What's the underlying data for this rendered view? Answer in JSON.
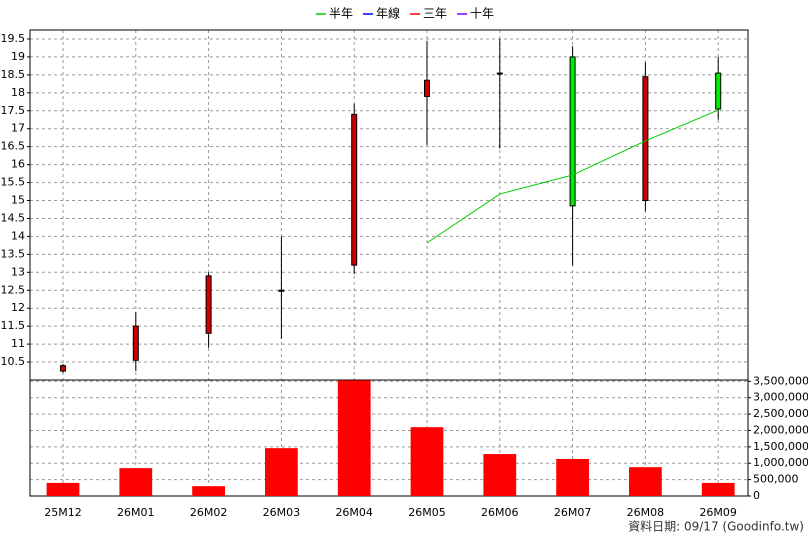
{
  "chart_data": {
    "type": "candlestick",
    "categories": [
      "25M12",
      "26M01",
      "26M02",
      "26M03",
      "26M04",
      "26M05",
      "26M06",
      "26M07",
      "26M08",
      "26M09"
    ],
    "open": [
      10.25,
      10.55,
      11.3,
      12.5,
      13.2,
      17.9,
      18.55,
      19.0,
      15.0,
      18.55
    ],
    "high": [
      10.45,
      11.9,
      13.0,
      14.0,
      17.7,
      19.45,
      19.5,
      19.3,
      18.85,
      19.0
    ],
    "low": [
      10.2,
      10.25,
      10.9,
      11.15,
      12.95,
      16.55,
      16.45,
      13.2,
      14.7,
      17.25
    ],
    "close": [
      10.4,
      11.5,
      12.9,
      12.5,
      17.4,
      18.35,
      18.55,
      14.85,
      18.45,
      17.55
    ],
    "up_color": "#cc0000",
    "down_color": "#00ee00",
    "ylim": [
      10,
      19.75
    ],
    "yticks": [
      10.5,
      11,
      11.5,
      12,
      12.5,
      13,
      13.5,
      14,
      14.5,
      15,
      15.5,
      16,
      16.5,
      17,
      17.5,
      18,
      18.5,
      19,
      19.5
    ],
    "grid": true,
    "series": [
      {
        "name": "半年",
        "color": "#00cc00",
        "values": [
          null,
          null,
          null,
          null,
          null,
          13.82,
          15.18,
          15.71,
          16.66,
          17.52
        ]
      },
      {
        "name": "年線",
        "color": "#0000ff",
        "values": [
          null,
          null,
          null,
          null,
          null,
          null,
          null,
          null,
          null,
          null
        ]
      },
      {
        "name": "三年",
        "color": "#ff0000",
        "values": [
          null,
          null,
          null,
          null,
          null,
          null,
          null,
          null,
          null,
          null
        ]
      },
      {
        "name": "十年",
        "color": "#8000ff",
        "values": [
          null,
          null,
          null,
          null,
          null,
          null,
          null,
          null,
          null,
          null
        ]
      }
    ],
    "volume": {
      "type": "bar",
      "color": "#ff0000",
      "values": [
        400000,
        850000,
        300000,
        1460000,
        3530000,
        2100000,
        1280000,
        1130000,
        880000,
        400000
      ],
      "ylim": [
        0,
        3540000
      ],
      "yticks": [
        {
          "value": 0,
          "label": "0"
        },
        {
          "value": 500000,
          "label": "500,000"
        },
        {
          "value": 1000000,
          "label": "1,000,000"
        },
        {
          "value": 1500000,
          "label": "1,500,000"
        },
        {
          "value": 2000000,
          "label": "2,000,000"
        },
        {
          "value": 2500000,
          "label": "2,500,000"
        },
        {
          "value": 3000000,
          "label": "3,000,000"
        },
        {
          "value": 3500000,
          "label": "3,500,000"
        }
      ]
    },
    "footer": "資料日期: 09/17 (Goodinfo.tw)"
  }
}
